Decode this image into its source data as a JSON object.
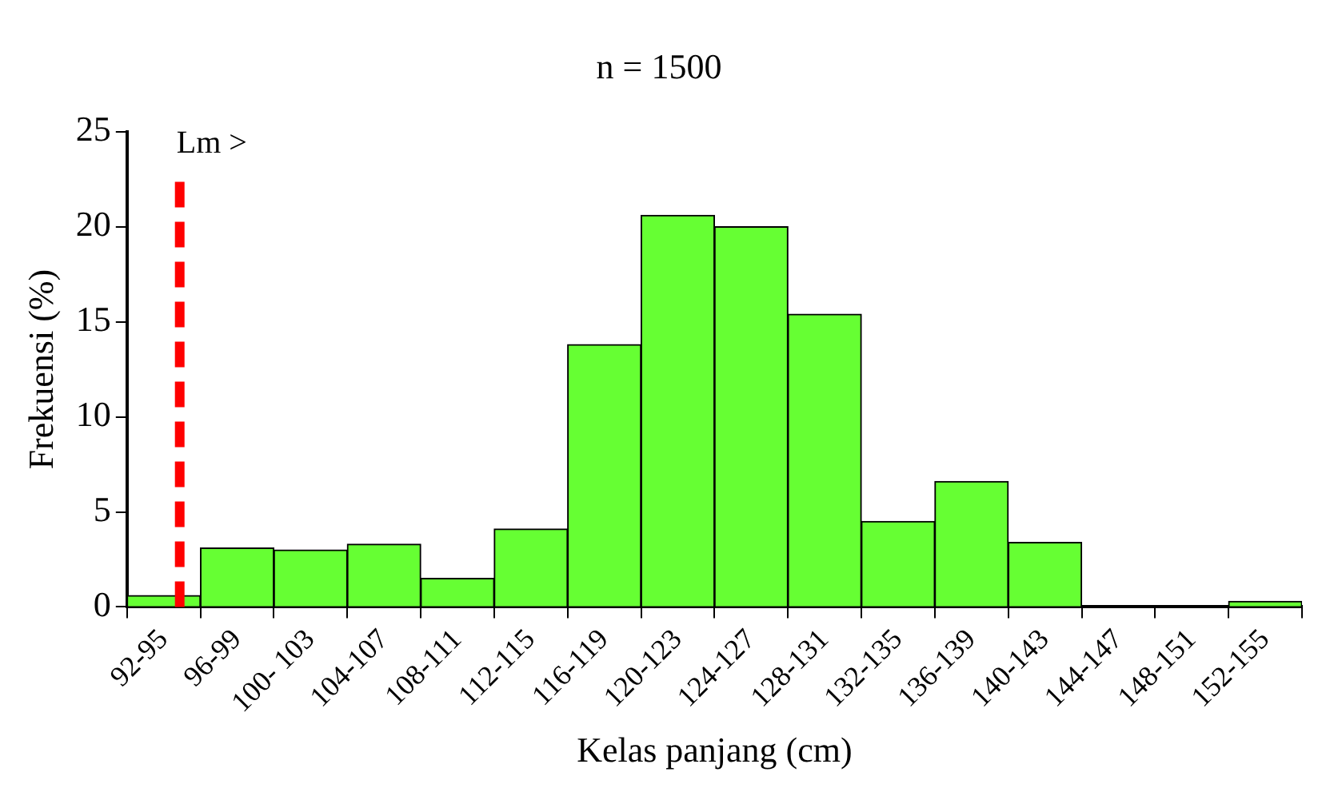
{
  "chart_data": {
    "type": "bar",
    "title": "n = 1500",
    "xlabel": "Kelas panjang (cm)",
    "ylabel": "Frekuensi (%)",
    "categories": [
      "92-95",
      "96-99",
      "100- 103",
      "104-107",
      "108-111",
      "112-115",
      "116-119",
      "120-123",
      "124-127",
      "128-131",
      "132-135",
      "136-139",
      "140-143",
      "144-147",
      "148-151",
      "152-155"
    ],
    "values": [
      0.6,
      3.1,
      3.0,
      3.3,
      1.5,
      4.1,
      13.8,
      20.6,
      20.0,
      15.4,
      4.5,
      6.6,
      3.4,
      0,
      0,
      0.3
    ],
    "color": "#66ff33",
    "ylim": [
      0,
      25
    ],
    "yticks": [
      0,
      5,
      10,
      15,
      20,
      25
    ],
    "ref_lines": [
      {
        "axis": "x",
        "value": "92-95",
        "label": "Lm >",
        "color": "#ff0000",
        "line_style": "dashed"
      }
    ]
  }
}
